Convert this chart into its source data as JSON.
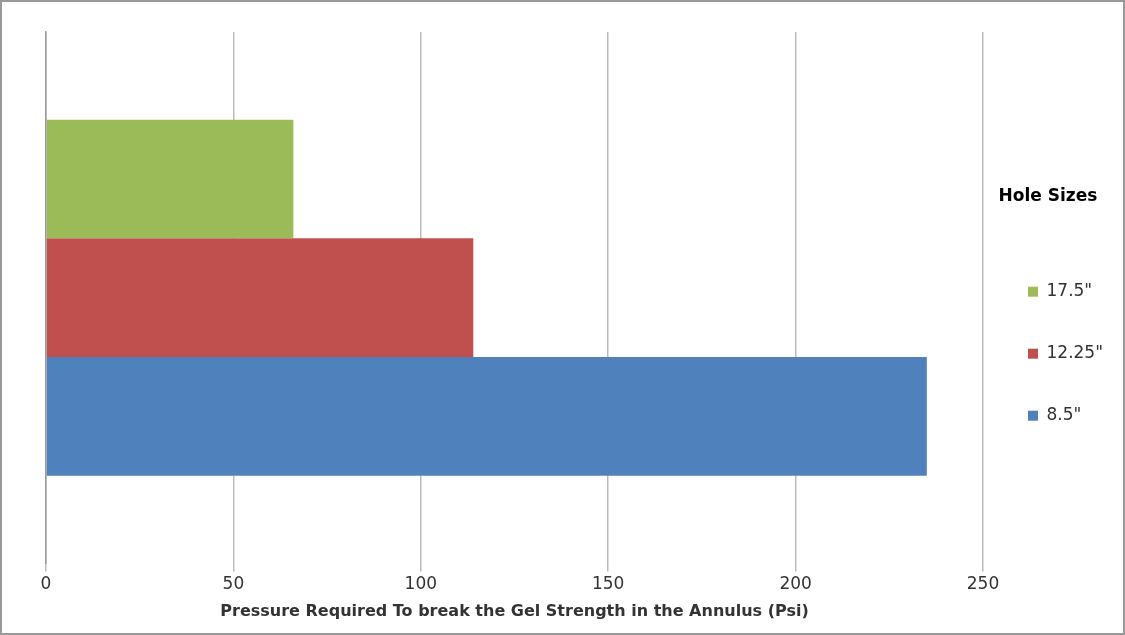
{
  "chart_data": {
    "type": "bar",
    "orientation": "horizontal",
    "categories": [
      null
    ],
    "series": [
      {
        "name": "17.5\"",
        "color": "#9bbb59",
        "values": [
          66
        ]
      },
      {
        "name": "12.25\"",
        "color": "#c0504d",
        "values": [
          114
        ]
      },
      {
        "name": "8.5\"",
        "color": "#4f81bd",
        "values": [
          235
        ]
      }
    ],
    "xlabel": "Pressure Required To break the Gel Strength in the Annulus (Psi)",
    "legend_title": "Hole Sizes",
    "legend": "right",
    "xlim": [
      0,
      250
    ],
    "xticks": [
      0,
      50,
      100,
      150,
      200,
      250
    ],
    "grid": "x"
  }
}
